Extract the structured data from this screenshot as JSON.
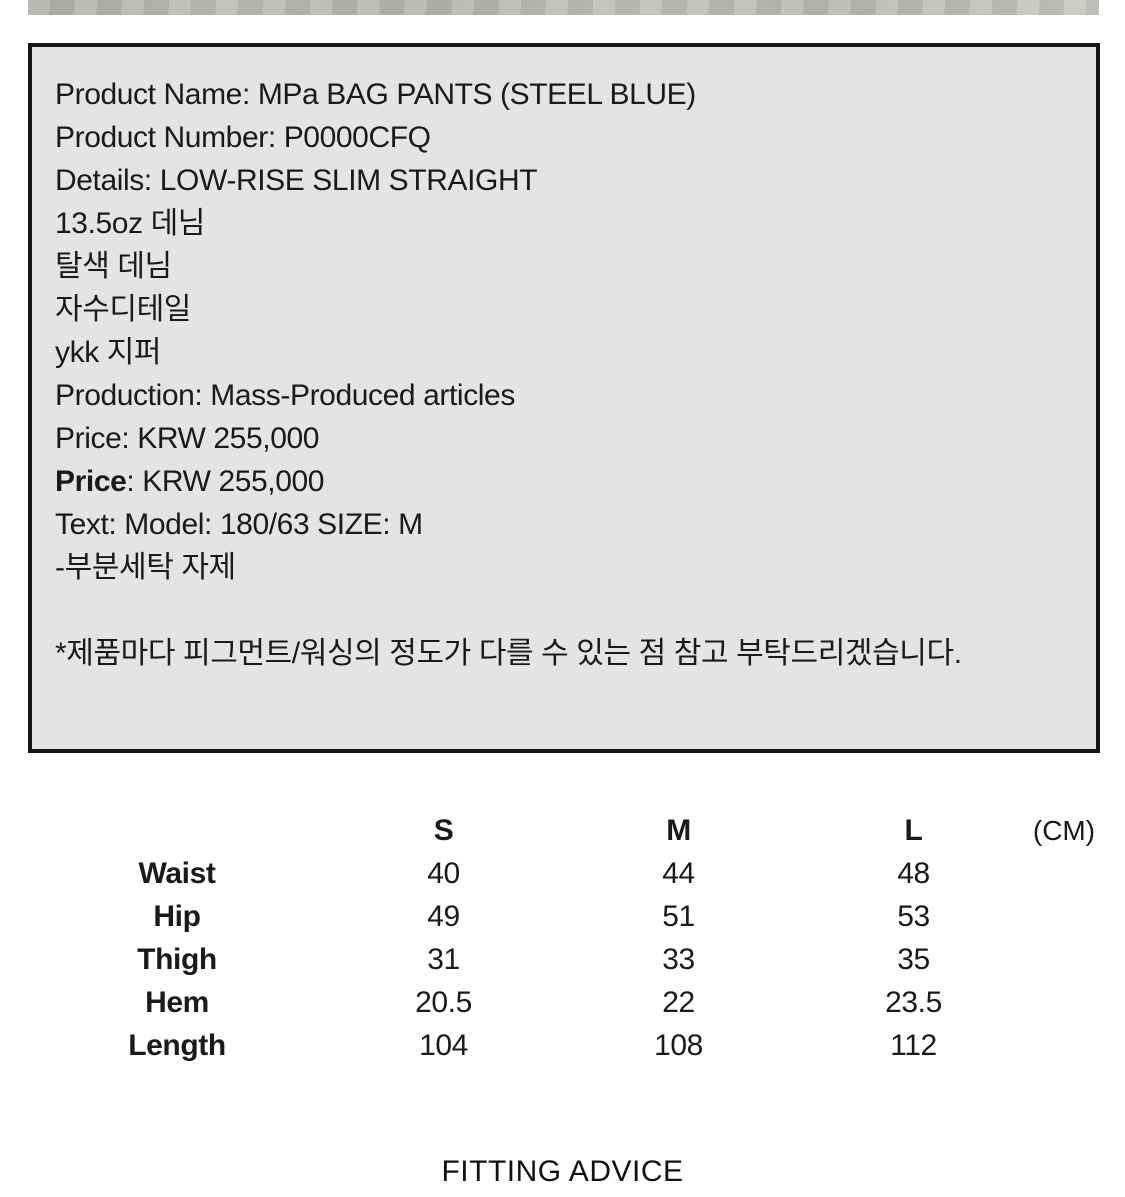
{
  "colors": {
    "page_bg": "#ffffff",
    "box_bg": "#e4e4e4",
    "box_border": "#151515",
    "text": "#1a1a1a",
    "photo_strip": "#b9b8b4"
  },
  "info_box": {
    "lines": [
      {
        "segments": [
          {
            "text": "Product Name: MPa BAG PANTS (STEEL BLUE)",
            "bold": false
          }
        ]
      },
      {
        "segments": [
          {
            "text": "Product Number: P0000CFQ",
            "bold": false
          }
        ]
      },
      {
        "segments": [
          {
            "text": "Details: LOW-RISE SLIM STRAIGHT",
            "bold": false
          }
        ]
      },
      {
        "segments": [
          {
            "text": "13.5oz 데님",
            "bold": false
          }
        ]
      },
      {
        "segments": [
          {
            "text": "탈색 데님",
            "bold": false
          }
        ]
      },
      {
        "segments": [
          {
            "text": "자수디테일",
            "bold": false
          }
        ]
      },
      {
        "segments": [
          {
            "text": "ykk 지퍼",
            "bold": false
          }
        ]
      },
      {
        "segments": [
          {
            "text": "Production: Mass-Produced articles",
            "bold": false
          }
        ]
      },
      {
        "segments": [
          {
            "text": "Price: KRW 255,000",
            "bold": false
          }
        ]
      },
      {
        "segments": [
          {
            "text": "Price",
            "bold": true
          },
          {
            "text": ": KRW 255,000",
            "bold": false
          }
        ]
      },
      {
        "segments": [
          {
            "text": "Text: Model: 180/63 SIZE: M",
            "bold": false
          }
        ]
      },
      {
        "segments": [
          {
            "text": "-부분세탁 자제",
            "bold": false
          }
        ]
      },
      {
        "segments": []
      },
      {
        "segments": [
          {
            "text": "*제품마다 피그먼트/워싱의 정도가 다를 수 있는 점 참고 부탁드리겠습니다.",
            "bold": false
          }
        ],
        "note": true
      }
    ]
  },
  "size_table": {
    "unit": "(CM)",
    "size_headers": [
      "S",
      "M",
      "L"
    ],
    "rows": [
      {
        "label": "Waist",
        "values": [
          "40",
          "44",
          "48"
        ]
      },
      {
        "label": "Hip",
        "values": [
          "49",
          "51",
          "53"
        ]
      },
      {
        "label": "Thigh",
        "values": [
          "31",
          "33",
          "35"
        ]
      },
      {
        "label": "Hem",
        "values": [
          "20.5",
          "22",
          "23.5"
        ]
      },
      {
        "label": "Length",
        "values": [
          "104",
          "108",
          "112"
        ]
      }
    ]
  },
  "footer": {
    "title": "FITTING ADVICE"
  }
}
